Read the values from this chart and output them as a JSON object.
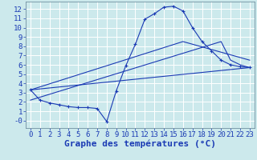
{
  "xlabel": "Graphe des températures (°C)",
  "background_color": "#cce9ec",
  "grid_color": "#ffffff",
  "line_color": "#1a3ab4",
  "xlim": [
    -0.5,
    23.5
  ],
  "ylim": [
    -0.8,
    12.8
  ],
  "xticks": [
    0,
    1,
    2,
    3,
    4,
    5,
    6,
    7,
    8,
    9,
    10,
    11,
    12,
    13,
    14,
    15,
    16,
    17,
    18,
    19,
    20,
    21,
    22,
    23
  ],
  "yticks": [
    0,
    1,
    2,
    3,
    4,
    5,
    6,
    7,
    8,
    9,
    10,
    11,
    12
  ],
  "ytick_labels": [
    "-0",
    "1",
    "2",
    "3",
    "4",
    "5",
    "6",
    "7",
    "8",
    "9",
    "10",
    "11",
    "12"
  ],
  "curve1_x": [
    0,
    1,
    2,
    3,
    4,
    5,
    6,
    7,
    8,
    9,
    10,
    11,
    12,
    13,
    14,
    15,
    16,
    17,
    18,
    19,
    20,
    21,
    22,
    23
  ],
  "curve1_y": [
    3.3,
    2.2,
    1.9,
    1.7,
    1.5,
    1.4,
    1.4,
    1.3,
    -0.1,
    3.2,
    5.9,
    8.2,
    10.9,
    11.5,
    12.2,
    12.3,
    11.8,
    10.0,
    8.5,
    7.5,
    6.5,
    6.0,
    5.8,
    5.7
  ],
  "line2_x": [
    0,
    23
  ],
  "line2_y": [
    3.3,
    5.7
  ],
  "line3_x": [
    0,
    20,
    21,
    22,
    23
  ],
  "line3_y": [
    2.2,
    8.5,
    6.5,
    6.0,
    5.7
  ],
  "line4_x": [
    0,
    16,
    23
  ],
  "line4_y": [
    3.3,
    8.5,
    6.5
  ],
  "fontsize_xlabel": 8,
  "tick_fontsize": 6.5
}
